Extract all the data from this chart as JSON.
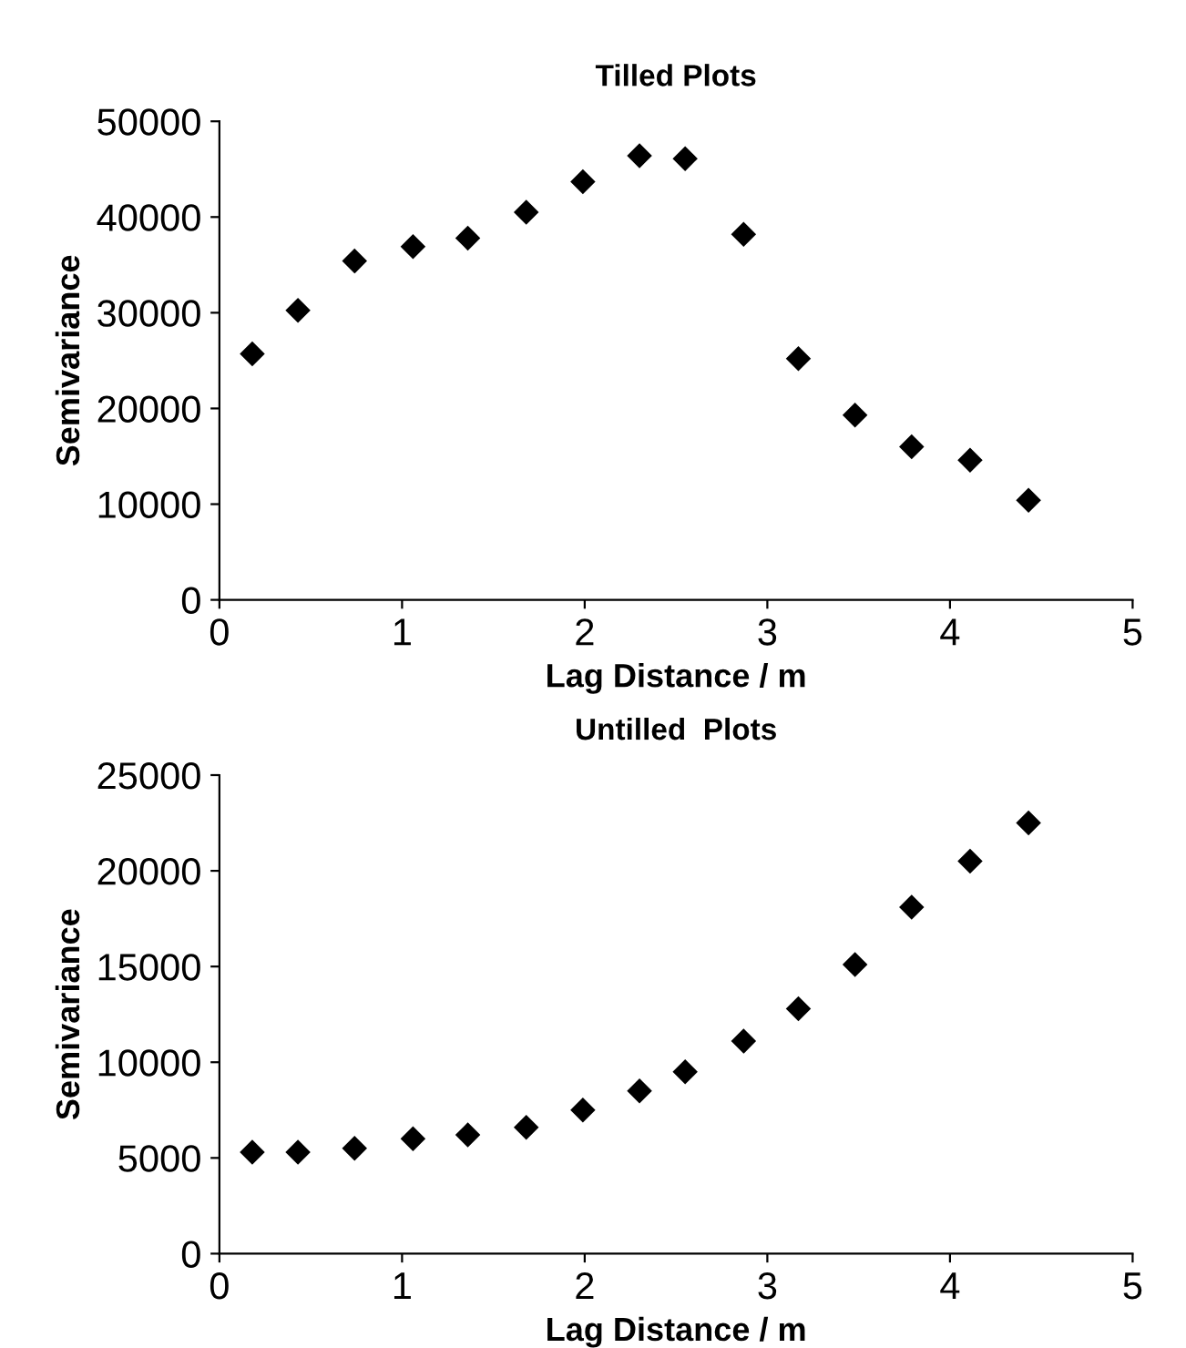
{
  "chart_data": [
    {
      "type": "scatter",
      "title": "Tilled Plots",
      "xlabel": "Lag Distance / m",
      "ylabel": "Semivariance",
      "x": [
        0.18,
        0.43,
        0.74,
        1.06,
        1.36,
        1.68,
        1.99,
        2.3,
        2.55,
        2.87,
        3.17,
        3.48,
        3.79,
        4.11,
        4.43
      ],
      "series": [
        {
          "color": "#000000",
          "values": [
            25700,
            30250,
            35400,
            36900,
            37800,
            40500,
            43700,
            46400,
            46100,
            38200,
            25200,
            19300,
            16000,
            14600,
            10400
          ]
        }
      ],
      "xlim": [
        0,
        5
      ],
      "xticks": [
        0,
        1,
        2,
        3,
        4,
        5
      ],
      "ylim": [
        0,
        50000
      ],
      "yticks": [
        0,
        10000,
        20000,
        30000,
        40000,
        50000
      ],
      "marker": "diamond",
      "grid": false,
      "legend": false
    },
    {
      "type": "scatter",
      "title": "Untilled  Plots",
      "xlabel": "Lag Distance / m",
      "ylabel": "Semivariance",
      "x": [
        0.18,
        0.43,
        0.74,
        1.06,
        1.36,
        1.68,
        1.99,
        2.3,
        2.55,
        2.87,
        3.17,
        3.48,
        3.79,
        4.11,
        4.43
      ],
      "series": [
        {
          "color": "#000000",
          "values": [
            5300,
            5300,
            5500,
            6000,
            6200,
            6600,
            7500,
            8500,
            9500,
            11100,
            12800,
            15100,
            18100,
            20500,
            22500
          ]
        }
      ],
      "xlim": [
        0,
        5
      ],
      "xticks": [
        0,
        1,
        2,
        3,
        4,
        5
      ],
      "ylim": [
        0,
        25000
      ],
      "yticks": [
        0,
        5000,
        10000,
        15000,
        20000,
        25000
      ],
      "marker": "diamond",
      "grid": false,
      "legend": false
    }
  ]
}
